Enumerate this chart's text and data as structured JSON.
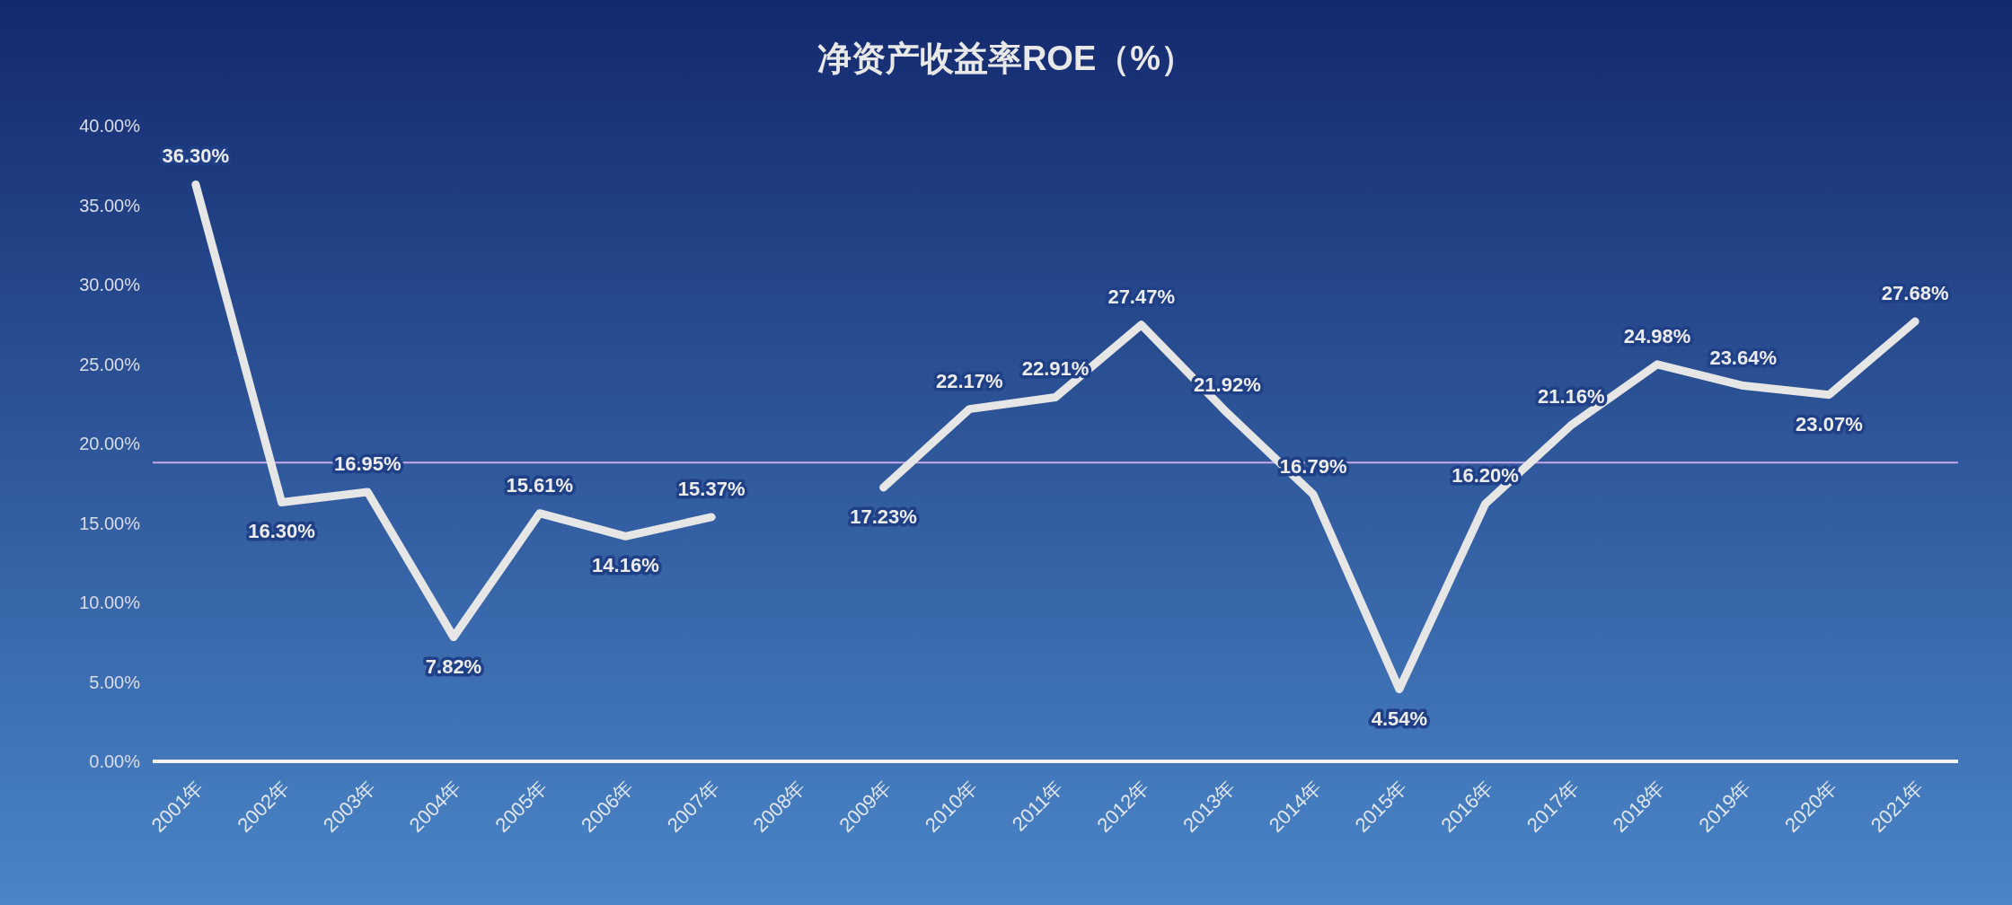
{
  "chart_data": {
    "type": "line",
    "title": "净资产收益率ROE（%）",
    "categories": [
      "2001年",
      "2002年",
      "2003年",
      "2004年",
      "2005年",
      "2006年",
      "2007年",
      "2008年",
      "2009年",
      "2010年",
      "2011年",
      "2012年",
      "2013年",
      "2014年",
      "2015年",
      "2016年",
      "2017年",
      "2018年",
      "2019年",
      "2020年",
      "2021年"
    ],
    "series": [
      {
        "color": "#e6e6e6",
        "values": [
          36.3,
          16.3,
          16.95,
          7.82,
          15.61,
          14.16,
          15.37,
          null,
          17.23,
          22.17,
          22.91,
          27.47,
          21.92,
          16.79,
          4.54,
          16.2,
          21.16,
          24.98,
          23.64,
          23.07,
          27.68
        ],
        "value_labels": [
          "36.30%",
          "16.30%",
          "16.95%",
          "7.82%",
          "15.61%",
          "14.16%",
          "15.37%",
          null,
          "17.23%",
          "22.17%",
          "22.91%",
          "27.47%",
          "21.92%",
          "16.79%",
          "4.54%",
          "16.20%",
          "21.16%",
          "24.98%",
          "23.64%",
          "23.07%",
          "27.68%"
        ]
      }
    ],
    "ylim": [
      0,
      40
    ],
    "yticks": [
      {
        "value": 0,
        "label": "0.00%"
      },
      {
        "value": 5,
        "label": "5.00%"
      },
      {
        "value": 10,
        "label": "10.00%"
      },
      {
        "value": 15,
        "label": "15.00%"
      },
      {
        "value": 20,
        "label": "20.00%"
      },
      {
        "value": 25,
        "label": "25.00%"
      },
      {
        "value": 30,
        "label": "30.00%"
      },
      {
        "value": 35,
        "label": "35.00%"
      },
      {
        "value": 40,
        "label": "40.00%"
      }
    ],
    "ref_lines": [
      {
        "axis": "y",
        "value": 18.8,
        "color": "#c9a7e8"
      }
    ],
    "grid": false,
    "marker": "none",
    "line_style": "solid"
  }
}
